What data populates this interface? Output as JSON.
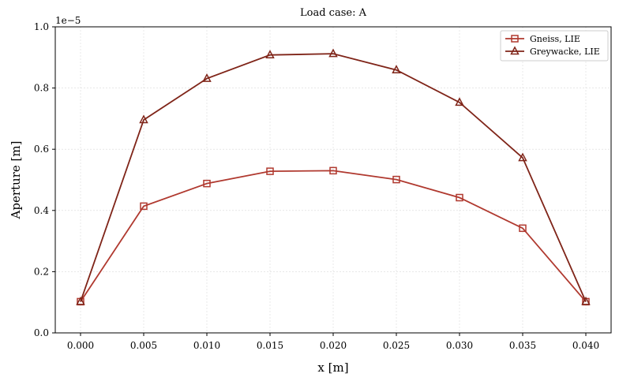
{
  "chart_data": {
    "type": "line",
    "title": "Load case: A",
    "xlabel": "x [m]",
    "ylabel": "Aperture [m]",
    "y_offset_label": "1e−5",
    "x": [
      0.0,
      0.005,
      0.01,
      0.015,
      0.02,
      0.025,
      0.03,
      0.035,
      0.04
    ],
    "xlim": [
      -0.002,
      0.042
    ],
    "ylim": [
      0,
      1.0
    ],
    "y_scale_note": "values in units of 1e-5 m",
    "xticks": [
      0.0,
      0.005,
      0.01,
      0.015,
      0.02,
      0.025,
      0.03,
      0.035,
      0.04
    ],
    "xtick_labels": [
      "0.000",
      "0.005",
      "0.010",
      "0.015",
      "0.020",
      "0.025",
      "0.030",
      "0.035",
      "0.040"
    ],
    "yticks": [
      0.0,
      0.2,
      0.4,
      0.6,
      0.8,
      1.0
    ],
    "ytick_labels": [
      "0.0",
      "0.2",
      "0.4",
      "0.6",
      "0.8",
      "1.0"
    ],
    "grid": true,
    "legend_position": "top-right",
    "series": [
      {
        "name": "Gneiss, LIE",
        "marker": "square",
        "color": "#b0392f",
        "values": [
          0.102,
          0.414,
          0.488,
          0.528,
          0.53,
          0.501,
          0.442,
          0.342,
          0.102
        ]
      },
      {
        "name": "Greywacke, LIE",
        "marker": "triangle",
        "color": "#7f2418",
        "values": [
          0.102,
          0.696,
          0.831,
          0.908,
          0.912,
          0.859,
          0.753,
          0.572,
          0.102
        ]
      }
    ]
  }
}
